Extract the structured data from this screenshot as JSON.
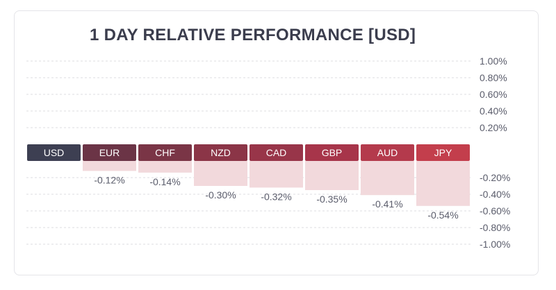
{
  "chart_data": {
    "type": "bar",
    "title": "1 DAY RELATIVE PERFORMANCE  [USD]",
    "categories": [
      "USD",
      "EUR",
      "CHF",
      "NZD",
      "CAD",
      "GBP",
      "AUD",
      "JPY"
    ],
    "values": [
      0,
      -0.12,
      -0.14,
      -0.3,
      -0.32,
      -0.35,
      -0.41,
      -0.54
    ],
    "value_labels": [
      "",
      "-0.12%",
      "-0.14%",
      "-0.30%",
      "-0.32%",
      "-0.35%",
      "-0.41%",
      "-0.54%"
    ],
    "ylim": [
      -1.0,
      1.0
    ],
    "y_ticks_positive": [
      "1.00%",
      "0.80%",
      "0.60%",
      "0.40%",
      "0.20%"
    ],
    "y_ticks_negative": [
      "-0.20%",
      "-0.40%",
      "-0.60%",
      "-0.80%",
      "-1.00%"
    ],
    "grid": true,
    "colors": {
      "label_boxes": [
        "#3d3f52",
        "#6b3446",
        "#7a3546",
        "#8b3547",
        "#983549",
        "#a7354a",
        "#b43a4c",
        "#c33e4c"
      ],
      "bar_fill": "#f2d9dc",
      "grid": "#dcdce2",
      "text": "#5a5c6b"
    }
  }
}
